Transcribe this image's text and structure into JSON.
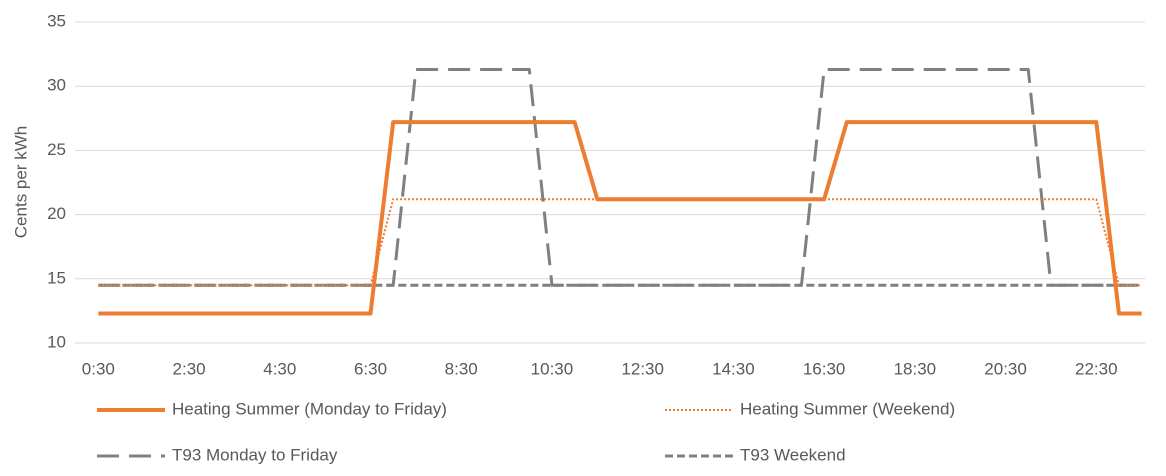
{
  "chart_data": {
    "type": "line",
    "y_label": "Cents per kWh",
    "categories": [
      "0:30",
      null,
      null,
      null,
      "2:30",
      null,
      null,
      null,
      "4:30",
      null,
      null,
      null,
      "6:30",
      null,
      null,
      null,
      "8:30",
      null,
      null,
      null,
      "10:30",
      null,
      null,
      null,
      "12:30",
      null,
      null,
      null,
      "14:30",
      null,
      null,
      null,
      "16:30",
      null,
      null,
      null,
      "18:30",
      null,
      null,
      null,
      "20:30",
      null,
      null,
      null,
      "22:30",
      null,
      null
    ],
    "series": [
      {
        "name": "Heating Summer (Monday to Friday)",
        "color": "#ed7d31",
        "dash": "solid",
        "values": [
          12.3,
          12.3,
          12.3,
          12.3,
          12.3,
          12.3,
          12.3,
          12.3,
          12.3,
          12.3,
          12.3,
          12.3,
          12.3,
          27.2,
          27.2,
          27.2,
          27.2,
          27.2,
          27.2,
          27.2,
          27.2,
          27.2,
          21.2,
          21.2,
          21.2,
          21.2,
          21.2,
          21.2,
          21.2,
          21.2,
          21.2,
          21.2,
          21.2,
          27.2,
          27.2,
          27.2,
          27.2,
          27.2,
          27.2,
          27.2,
          27.2,
          27.2,
          27.2,
          27.2,
          27.2,
          12.3,
          12.3
        ]
      },
      {
        "name": "Heating Summer (Weekend)",
        "color": "#ed7d31",
        "dash": "dotted",
        "values": [
          14.5,
          14.5,
          14.5,
          14.5,
          14.5,
          14.5,
          14.5,
          14.5,
          14.5,
          14.5,
          14.5,
          14.5,
          14.5,
          21.2,
          21.2,
          21.2,
          21.2,
          21.2,
          21.2,
          21.2,
          21.2,
          21.2,
          21.2,
          21.2,
          21.2,
          21.2,
          21.2,
          21.2,
          21.2,
          21.2,
          21.2,
          21.2,
          21.2,
          21.2,
          21.2,
          21.2,
          21.2,
          21.2,
          21.2,
          21.2,
          21.2,
          21.2,
          21.2,
          21.2,
          21.2,
          14.5,
          14.5
        ]
      },
      {
        "name": "T93 Monday to Friday",
        "color": "#808080",
        "dash": "long-dash",
        "values": [
          14.5,
          14.5,
          14.5,
          14.5,
          14.5,
          14.5,
          14.5,
          14.5,
          14.5,
          14.5,
          14.5,
          14.5,
          14.5,
          14.5,
          31.3,
          31.3,
          31.3,
          31.3,
          31.3,
          31.3,
          14.5,
          14.5,
          14.5,
          14.5,
          14.5,
          14.5,
          14.5,
          14.5,
          14.5,
          14.5,
          14.5,
          14.5,
          31.3,
          31.3,
          31.3,
          31.3,
          31.3,
          31.3,
          31.3,
          31.3,
          31.3,
          31.3,
          14.5,
          14.5,
          14.5,
          14.5,
          14.5
        ]
      },
      {
        "name": "T93 Weekend",
        "color": "#808080",
        "dash": "dash",
        "values": [
          14.5,
          14.5,
          14.5,
          14.5,
          14.5,
          14.5,
          14.5,
          14.5,
          14.5,
          14.5,
          14.5,
          14.5,
          14.5,
          14.5,
          14.5,
          14.5,
          14.5,
          14.5,
          14.5,
          14.5,
          14.5,
          14.5,
          14.5,
          14.5,
          14.5,
          14.5,
          14.5,
          14.5,
          14.5,
          14.5,
          14.5,
          14.5,
          14.5,
          14.5,
          14.5,
          14.5,
          14.5,
          14.5,
          14.5,
          14.5,
          14.5,
          14.5,
          14.5,
          14.5,
          14.5,
          14.5,
          14.5
        ]
      }
    ],
    "ylim": [
      10,
      35
    ],
    "yticks": [
      10,
      15,
      20,
      25,
      30,
      35
    ],
    "grid": true,
    "legend": "bottom"
  }
}
